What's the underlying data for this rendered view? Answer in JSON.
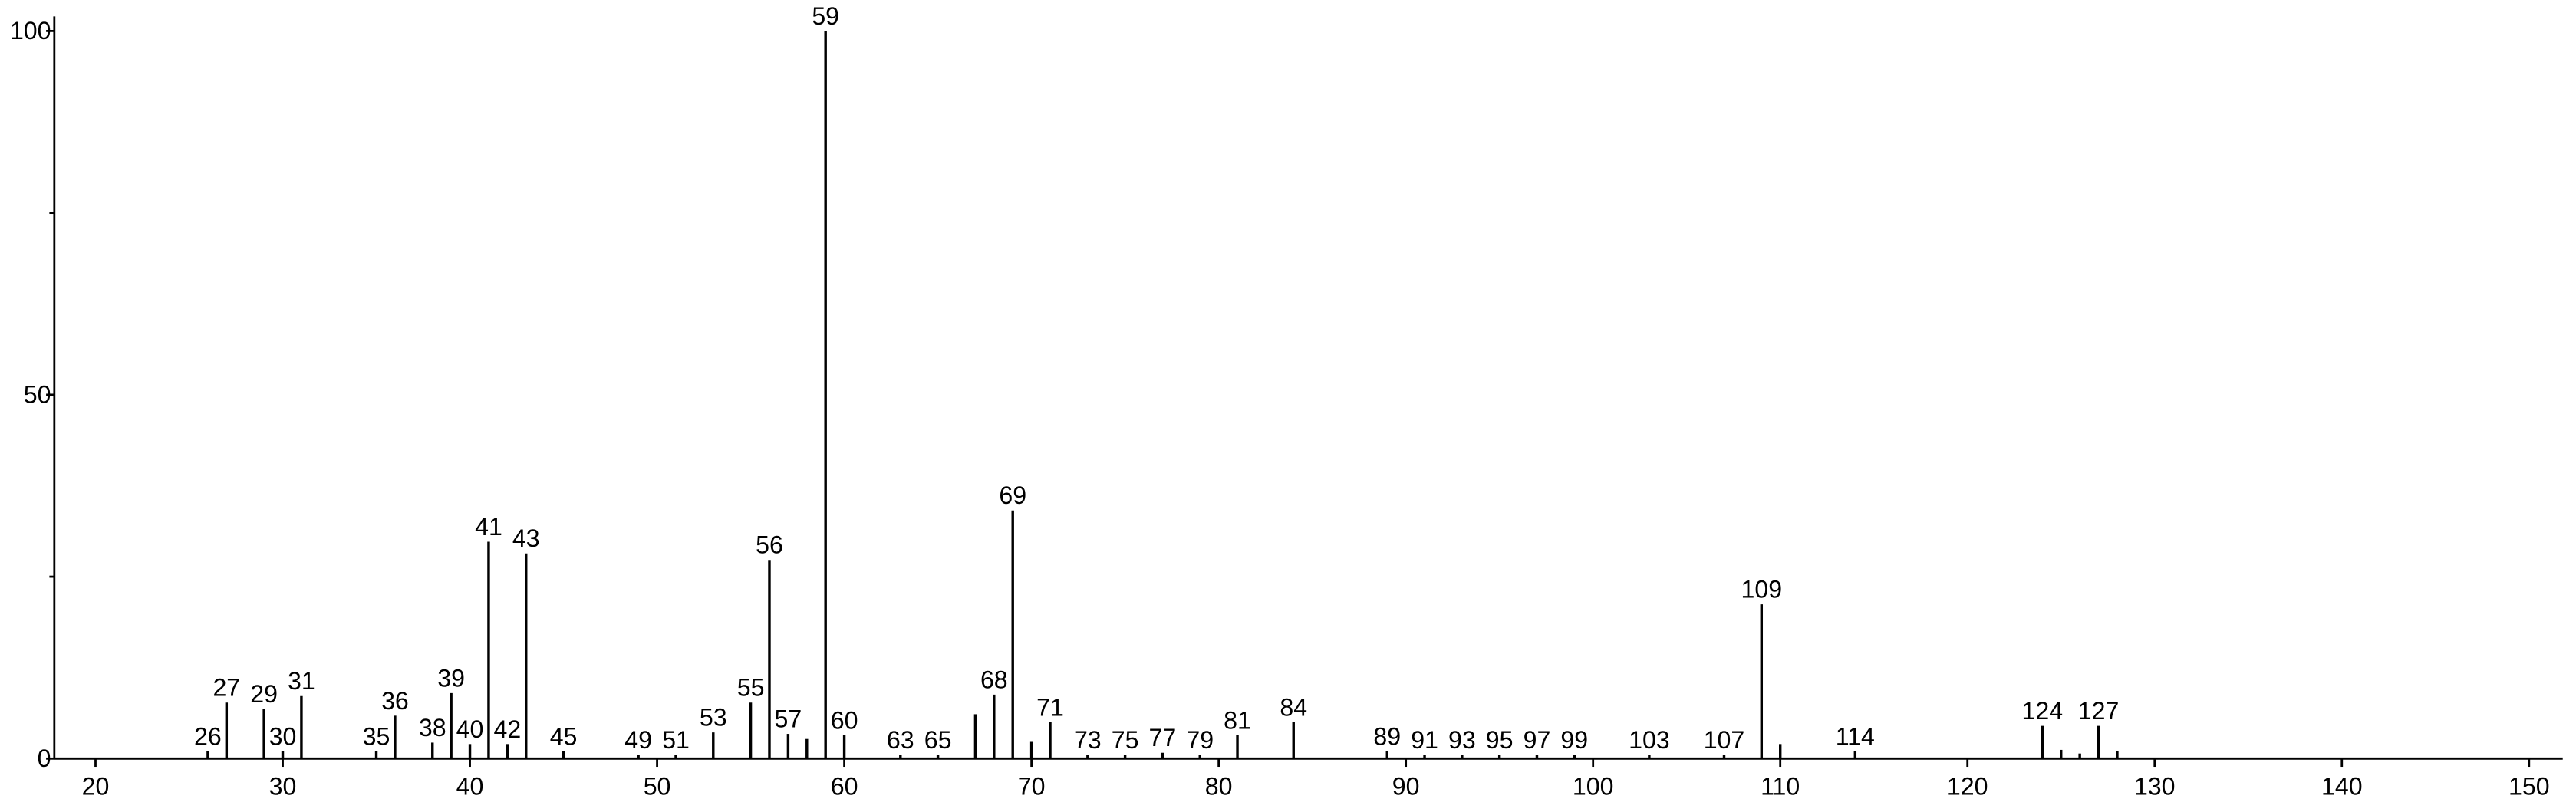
{
  "chart_data": {
    "type": "stem",
    "x": [
      26,
      27,
      29,
      30,
      31,
      35,
      36,
      38,
      39,
      40,
      41,
      42,
      43,
      45,
      49,
      51,
      53,
      55,
      56,
      57,
      58,
      59,
      60,
      63,
      65,
      67,
      68,
      69,
      70,
      71,
      73,
      75,
      77,
      79,
      81,
      84,
      89,
      91,
      93,
      95,
      97,
      99,
      103,
      107,
      109,
      110,
      114,
      124,
      125,
      126,
      127,
      128
    ],
    "values": [
      1,
      7.7,
      6.8,
      1,
      8.6,
      1,
      5.9,
      2.2,
      9,
      2,
      29.8,
      2,
      28.2,
      1,
      0.5,
      0.5,
      3.6,
      7.7,
      27.3,
      3.4,
      2.7,
      100,
      3.2,
      0.5,
      0.5,
      6.1,
      8.8,
      34.1,
      2.3,
      5,
      0.5,
      0.5,
      0.8,
      0.5,
      3.2,
      5,
      1,
      0.5,
      0.5,
      0.5,
      0.5,
      0.5,
      0.5,
      0.5,
      21.2,
      2,
      1,
      4.5,
      1.2,
      0.7,
      4.5,
      1
    ],
    "show_label": [
      true,
      true,
      true,
      true,
      true,
      true,
      true,
      true,
      true,
      true,
      true,
      true,
      true,
      true,
      true,
      true,
      true,
      true,
      true,
      true,
      false,
      true,
      true,
      true,
      true,
      false,
      true,
      true,
      false,
      true,
      true,
      true,
      true,
      true,
      true,
      true,
      true,
      true,
      true,
      true,
      true,
      true,
      true,
      true,
      true,
      false,
      true,
      true,
      false,
      false,
      true,
      false
    ],
    "color": "#000000",
    "xlim": [
      17.8,
      151.8
    ],
    "ylim": [
      0,
      102
    ],
    "xticks": [
      20,
      30,
      40,
      50,
      60,
      70,
      80,
      90,
      100,
      110,
      120,
      130,
      140,
      150
    ],
    "yticks": [
      0,
      50,
      100
    ],
    "yminorticks": [
      25,
      75
    ]
  }
}
